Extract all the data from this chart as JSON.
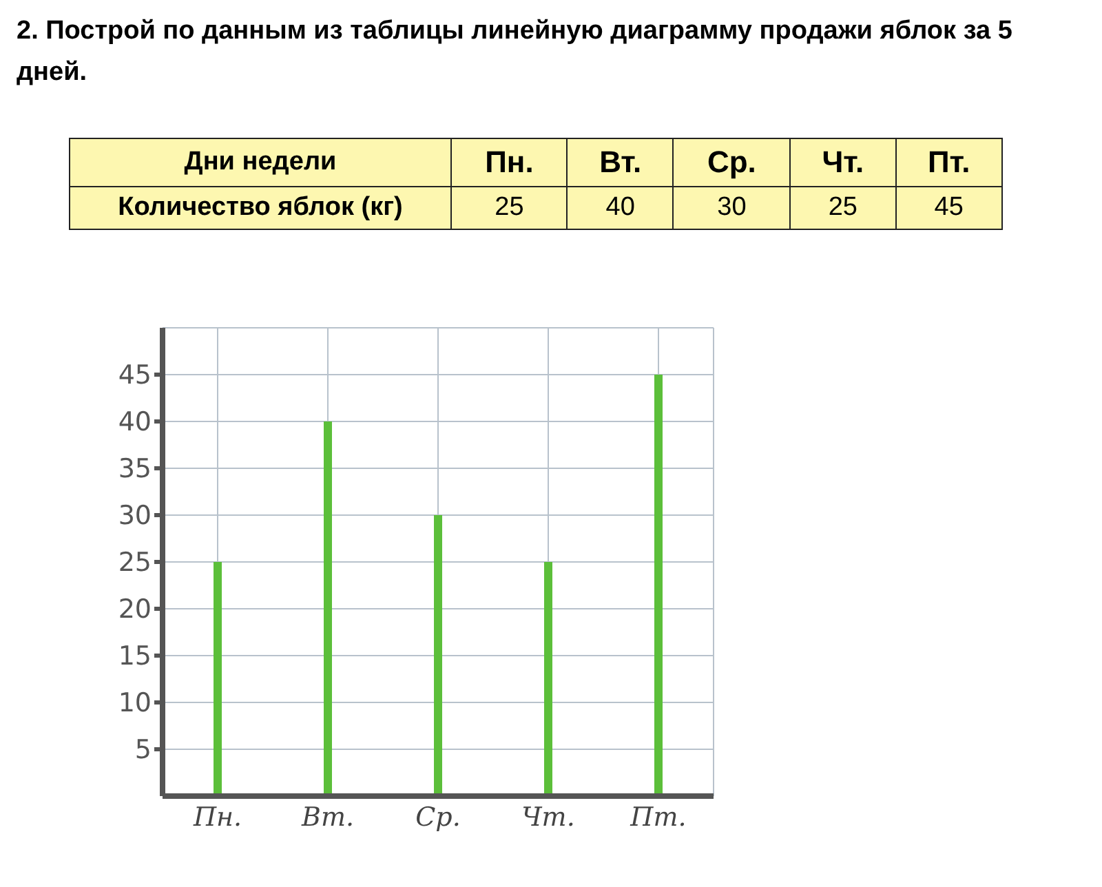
{
  "chart_data": [
    {
      "type": "other",
      "title": "2. Построй по данным из таблицы линейную диаграмму продажи яблок за 5 дней.",
      "annotations": [
        "Дни недели",
        "Количество яблок (кг)"
      ],
      "categories": [
        "Пн.",
        "Вт.",
        "Ср.",
        "Чт.",
        "Пт."
      ],
      "values": [
        25,
        40,
        30,
        25,
        45
      ],
      "data_labels": true
    },
    {
      "type": "bar",
      "categories": [
        "Пн.",
        "Вт.",
        "Ср.",
        "Чт.",
        "Пт."
      ],
      "values": [
        25,
        40,
        30,
        25,
        45
      ],
      "color": "#5cbf3a",
      "ylim": [
        0,
        50
      ],
      "yticks": [
        5,
        10,
        15,
        20,
        25,
        30,
        35,
        40,
        45
      ],
      "grid": true
    }
  ]
}
